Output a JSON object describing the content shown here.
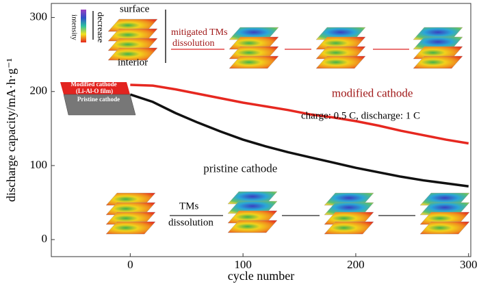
{
  "chart_data": {
    "type": "line",
    "xlabel": "cycle number",
    "ylabel": "discharge capacity/mA·h·g⁻¹",
    "x": [
      0,
      20,
      40,
      60,
      80,
      100,
      120,
      140,
      160,
      180,
      200,
      220,
      240,
      260,
      280,
      300
    ],
    "series": [
      {
        "name": "modified cathode",
        "color": "#e62820",
        "values": [
          209,
          208,
          203,
          197,
          191,
          185,
          180,
          175,
          169,
          165,
          160,
          154,
          147,
          141,
          135,
          130
        ]
      },
      {
        "name": "pristine cathode",
        "color": "#111111",
        "values": [
          196,
          186,
          171,
          158,
          146,
          135,
          126,
          118,
          111,
          104,
          97,
          91,
          85,
          80,
          76,
          72
        ]
      }
    ],
    "xlim": [
      -70,
      302
    ],
    "ylim": [
      -23,
      319
    ],
    "xticks": [
      0,
      100,
      200,
      300
    ],
    "yticks": [
      0,
      100,
      200,
      300
    ],
    "annotations": [
      "charge: 0.5 C, discharge: 1 C",
      "surface",
      "interior",
      "intensity",
      "decrease",
      "mitigated TMs",
      "dissolution",
      "TMs",
      "dissolution",
      "Modified cathode",
      "(Li-Al-O film)",
      "Pristine cathode"
    ]
  }
}
